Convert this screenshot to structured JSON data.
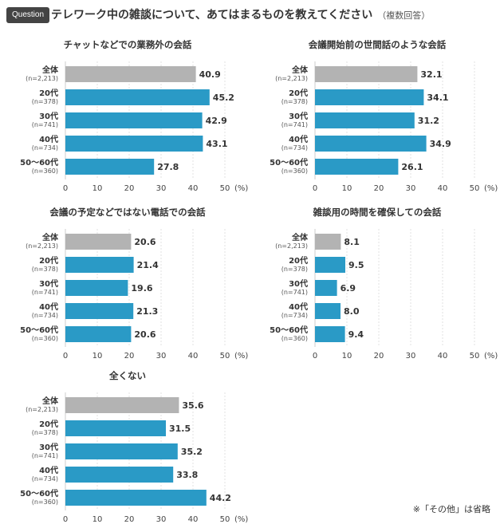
{
  "header": {
    "badge": "Question",
    "title": "テレワーク中の雑談について、あてはまるものを教えてください",
    "note": "（複数回答）"
  },
  "colors": {
    "total": "#b3b3b3",
    "segment": "#2a9ac6",
    "axis": "#cccccc",
    "text": "#333333"
  },
  "chart_data": [
    {
      "type": "bar",
      "orientation": "horizontal",
      "title": "チャットなどでの業務外の会話",
      "categories": [
        "全体",
        "20代",
        "30代",
        "40代",
        "50〜60代"
      ],
      "sublabels": [
        "(n=2,213)",
        "(n=378)",
        "(n=741)",
        "(n=734)",
        "(n=360)"
      ],
      "values": [
        40.9,
        45.2,
        42.9,
        43.1,
        27.8
      ],
      "value_labels": [
        "40.9",
        "45.2",
        "42.9",
        "43.1",
        "27.8"
      ],
      "xlim": [
        0,
        50
      ],
      "ticks": [
        "0",
        "10",
        "20",
        "30",
        "40",
        "50"
      ],
      "unit": "(%)"
    },
    {
      "type": "bar",
      "orientation": "horizontal",
      "title": "会議開始前の世間話のような会話",
      "categories": [
        "全体",
        "20代",
        "30代",
        "40代",
        "50〜60代"
      ],
      "sublabels": [
        "(n=2,213)",
        "(n=378)",
        "(n=741)",
        "(n=734)",
        "(n=360)"
      ],
      "values": [
        32.1,
        34.1,
        31.2,
        34.9,
        26.1
      ],
      "value_labels": [
        "32.1",
        "34.1",
        "31.2",
        "34.9",
        "26.1"
      ],
      "xlim": [
        0,
        50
      ],
      "ticks": [
        "0",
        "10",
        "20",
        "30",
        "40",
        "50"
      ],
      "unit": "(%)"
    },
    {
      "type": "bar",
      "orientation": "horizontal",
      "title": "会議の予定などではない電話での会話",
      "categories": [
        "全体",
        "20代",
        "30代",
        "40代",
        "50〜60代"
      ],
      "sublabels": [
        "(n=2,213)",
        "(n=378)",
        "(n=741)",
        "(n=734)",
        "(n=360)"
      ],
      "values": [
        20.6,
        21.4,
        19.6,
        21.3,
        20.6
      ],
      "value_labels": [
        "20.6",
        "21.4",
        "19.6",
        "21.3",
        "20.6"
      ],
      "xlim": [
        0,
        50
      ],
      "ticks": [
        "0",
        "10",
        "20",
        "30",
        "40",
        "50"
      ],
      "unit": "(%)"
    },
    {
      "type": "bar",
      "orientation": "horizontal",
      "title": "雑談用の時間を確保しての会話",
      "categories": [
        "全体",
        "20代",
        "30代",
        "40代",
        "50〜60代"
      ],
      "sublabels": [
        "(n=2,213)",
        "(n=378)",
        "(n=741)",
        "(n=734)",
        "(n=360)"
      ],
      "values": [
        8.1,
        9.5,
        6.9,
        8.0,
        9.4
      ],
      "value_labels": [
        "8.1",
        "9.5",
        "6.9",
        "8.0",
        "9.4"
      ],
      "xlim": [
        0,
        50
      ],
      "ticks": [
        "0",
        "10",
        "20",
        "30",
        "40",
        "50"
      ],
      "unit": "(%)"
    },
    {
      "type": "bar",
      "orientation": "horizontal",
      "title": "全くない",
      "categories": [
        "全体",
        "20代",
        "30代",
        "40代",
        "50〜60代"
      ],
      "sublabels": [
        "(n=2,213)",
        "(n=378)",
        "(n=741)",
        "(n=734)",
        "(n=360)"
      ],
      "values": [
        35.6,
        31.5,
        35.2,
        33.8,
        44.2
      ],
      "value_labels": [
        "35.6",
        "31.5",
        "35.2",
        "33.8",
        "44.2"
      ],
      "xlim": [
        0,
        50
      ],
      "ticks": [
        "0",
        "10",
        "20",
        "30",
        "40",
        "50"
      ],
      "unit": "(%)"
    }
  ],
  "footnote": "※「その他」は省略"
}
